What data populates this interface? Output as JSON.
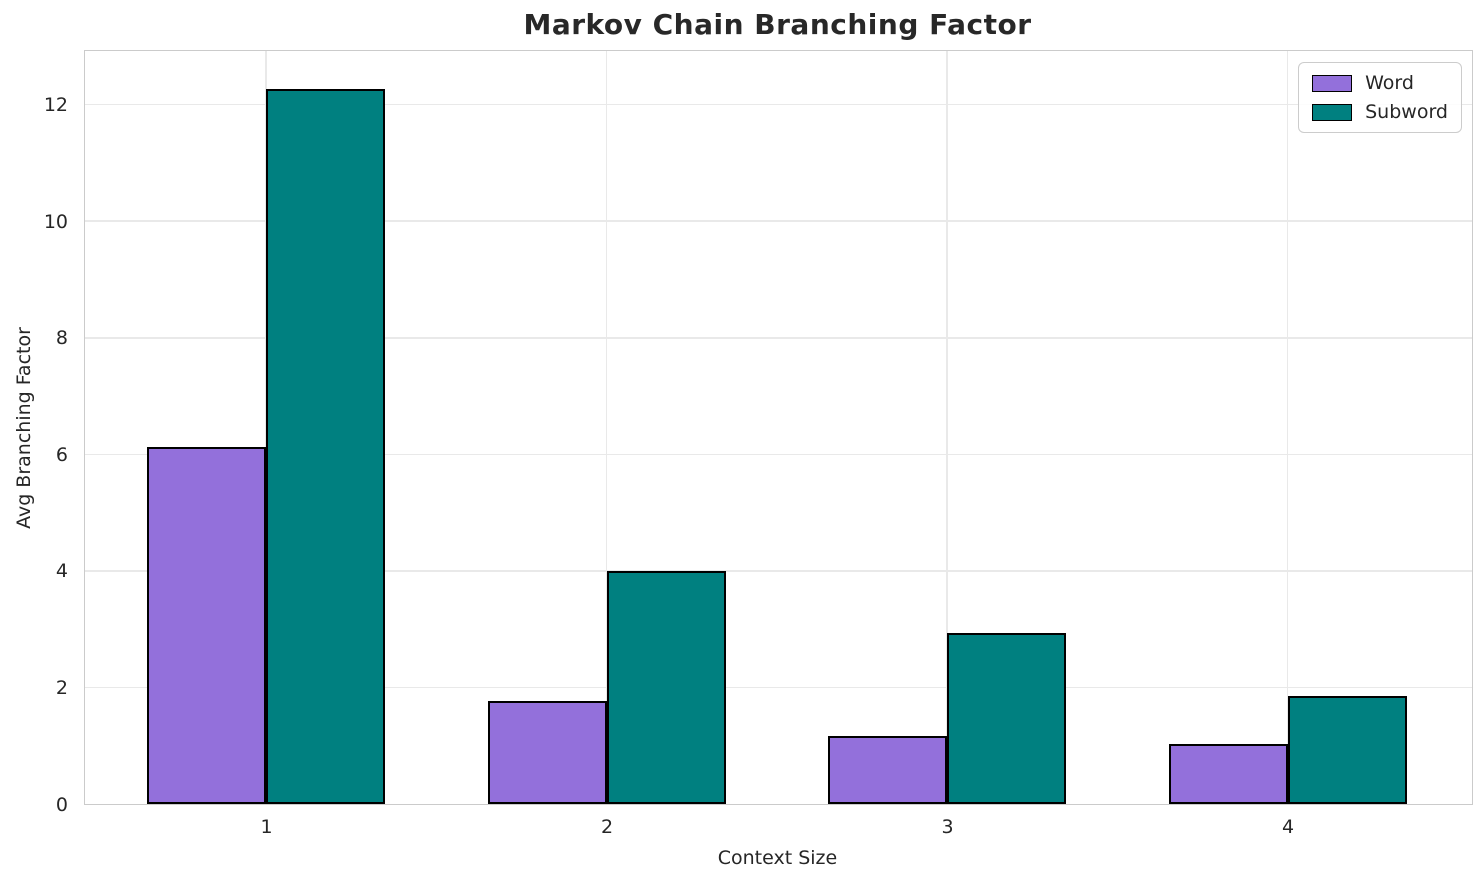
{
  "title": "Markov Chain Branching Factor",
  "chart_data": {
    "type": "bar",
    "title": "Markov Chain Branching Factor",
    "xlabel": "Context Size",
    "ylabel": "Avg Branching Factor",
    "categories": [
      "1",
      "2",
      "3",
      "4"
    ],
    "series": [
      {
        "name": "Word",
        "color": "#9370DB",
        "values": [
          6.12,
          1.77,
          1.16,
          1.03
        ]
      },
      {
        "name": "Subword",
        "color": "#008080",
        "values": [
          12.27,
          4.0,
          2.94,
          1.85
        ]
      }
    ],
    "bar_edge_color": "#000000",
    "yticks": [
      0,
      2,
      4,
      6,
      8,
      10,
      12
    ],
    "ylim": [
      0,
      12.92
    ],
    "grid": true,
    "grid_color": "#e9e9e9",
    "legend_position": "upper right"
  }
}
